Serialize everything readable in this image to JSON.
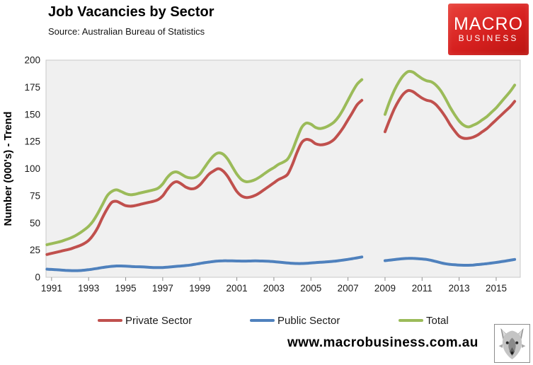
{
  "header": {
    "title": "Job Vacancies by Sector",
    "source": "Source: Australian Bureau of Statistics",
    "logo": {
      "line1": "MACRO",
      "line2": "BUSINESS",
      "bg": "#d6201f",
      "text_color": "#ffffff"
    }
  },
  "footer": {
    "website": "www.macrobusiness.com.au",
    "wolf_icon": "wolf-head-drawing"
  },
  "chart_data": {
    "type": "line",
    "title": "Job Vacancies by Sector",
    "xlabel": "",
    "ylabel": "Number (000's) - Trend",
    "xlim": [
      1990.7,
      2016.3
    ],
    "ylim": [
      0,
      200
    ],
    "xticks": [
      1991,
      1993,
      1995,
      1997,
      1999,
      2001,
      2003,
      2005,
      2007,
      2009,
      2011,
      2013,
      2015
    ],
    "yticks": [
      0,
      25,
      50,
      75,
      100,
      125,
      150,
      175,
      200
    ],
    "grid": false,
    "plot_bg": "#f0f0f0",
    "plot_border": "#c8c8c8",
    "tick_color": "#8c8c8c",
    "axis_text_color": "#1a1a1a",
    "legend_position": "bottom",
    "series": [
      {
        "name": "Private Sector",
        "color": "#c0504d",
        "segments": [
          {
            "start": 1990.75,
            "step": 0.25,
            "values": [
              21,
              22,
              23,
              24,
              25,
              26,
              27.5,
              29,
              31,
              34,
              39,
              46,
              55,
              63,
              69,
              70,
              68,
              66,
              65.5,
              66,
              67,
              68,
              69,
              70,
              71.5,
              75,
              81,
              86,
              88,
              86,
              83,
              81.5,
              82,
              85,
              90,
              95,
              98,
              100,
              98,
              93,
              86,
              79,
              75,
              73.5,
              74,
              75.5,
              78,
              81,
              84,
              87,
              90,
              92,
              95,
              104,
              115,
              124,
              127,
              126,
              123,
              122,
              122.5,
              124,
              127,
              132,
              138,
              145,
              152,
              159,
              163
            ]
          },
          {
            "start": 2009.0,
            "step": 0.25,
            "values": [
              134,
              145,
              155,
              163,
              169,
              172,
              171,
              168,
              165,
              163,
              162,
              159,
              154,
              148,
              141,
              135,
              130,
              128,
              128,
              129,
              131,
              134,
              137,
              141,
              145,
              149,
              153,
              157,
              162
            ]
          }
        ]
      },
      {
        "name": "Public Sector",
        "color": "#4f81bd",
        "segments": [
          {
            "start": 1990.75,
            "step": 0.25,
            "values": [
              7.5,
              7.2,
              7,
              6.7,
              6.4,
              6.2,
              6.1,
              6.2,
              6.5,
              7,
              7.6,
              8.3,
              9,
              9.6,
              10.1,
              10.4,
              10.4,
              10.2,
              10,
              9.8,
              9.7,
              9.5,
              9.2,
              9,
              8.9,
              9,
              9.3,
              9.7,
              10.1,
              10.4,
              10.8,
              11.3,
              12,
              12.7,
              13.4,
              14,
              14.6,
              15,
              15.2,
              15.2,
              15.1,
              15,
              14.9,
              14.9,
              15,
              15.1,
              15,
              14.9,
              14.7,
              14.4,
              14,
              13.6,
              13.2,
              12.9,
              12.7,
              12.7,
              12.9,
              13.2,
              13.5,
              13.8,
              14.1,
              14.4,
              14.8,
              15.3,
              15.9,
              16.5,
              17.2,
              17.9,
              18.7
            ]
          },
          {
            "start": 2009.0,
            "step": 0.25,
            "values": [
              15.3,
              15.8,
              16.3,
              16.8,
              17.2,
              17.4,
              17.4,
              17.2,
              16.9,
              16.4,
              15.6,
              14.5,
              13.4,
              12.5,
              11.9,
              11.5,
              11.2,
              11.1,
              11.1,
              11.3,
              11.7,
              12.1,
              12.6,
              13.1,
              13.7,
              14.3,
              15,
              15.7,
              16.4
            ]
          }
        ]
      },
      {
        "name": "Total",
        "color": "#9bbb59",
        "segments": [
          {
            "start": 1990.75,
            "step": 0.25,
            "values": [
              30,
              31,
              32,
              33,
              34.5,
              36,
              38,
              40.5,
              43.5,
              47,
              52,
              59,
              67,
              75,
              79,
              80.5,
              79,
              77,
              76,
              76.5,
              77.5,
              78.5,
              79.5,
              80.5,
              82,
              86,
              92,
              96,
              97,
              95,
              92.5,
              91.5,
              92,
              95,
              101,
              107,
              112,
              114.5,
              113.5,
              109,
              102,
              95,
              90,
              88,
              88.5,
              90,
              92.5,
              95.5,
              98.5,
              101,
              104,
              106,
              109,
              117,
              128,
              138,
              142,
              141,
              138,
              137,
              138,
              140,
              143,
              148,
              155,
              163,
              171,
              178,
              182
            ]
          },
          {
            "start": 2009.0,
            "step": 0.25,
            "values": [
              150,
              162,
              172,
              180,
              186,
              189.5,
              189,
              186,
              183,
              181,
              180,
              177,
              172,
              165,
              157,
              150,
              144,
              140,
              138.5,
              140,
              142,
              145,
              148,
              152,
              156,
              161,
              166,
              171,
              177
            ]
          }
        ]
      }
    ]
  }
}
